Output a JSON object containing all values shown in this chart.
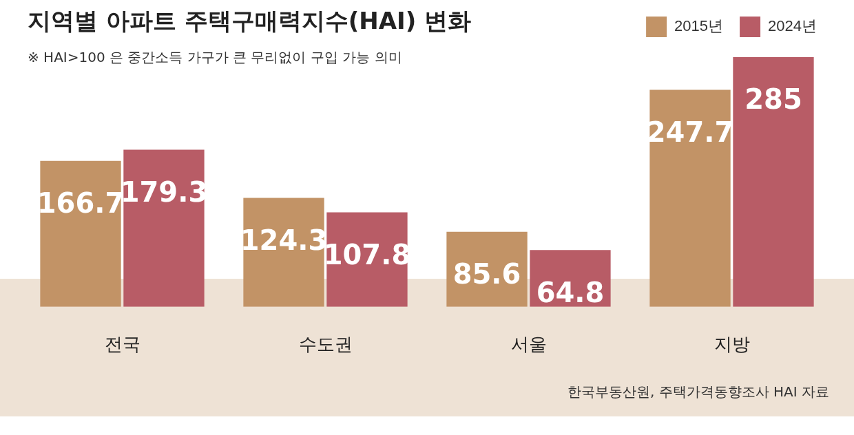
{
  "chart_data": {
    "type": "bar",
    "title": "지역별 아파트 주택구매력지수(HAI) 변화",
    "subtitle": "※ HAI>100 은 중간소득 가구가 큰 무리없이 구입 가능 의미",
    "categories": [
      "전국",
      "수도권",
      "서울",
      "지방"
    ],
    "series": [
      {
        "name": "2015년",
        "color": "#c29366",
        "values": [
          166.7,
          124.3,
          85.6,
          247.7
        ]
      },
      {
        "name": "2024년",
        "color": "#b85c66",
        "values": [
          179.3,
          107.8,
          64.8,
          285
        ]
      }
    ],
    "data_labels": true,
    "grid": false,
    "legend": "top right",
    "tick_labels": "x",
    "annotations": [
      "한국부동산원, 주택가격동향조사 HAI 자료"
    ]
  }
}
